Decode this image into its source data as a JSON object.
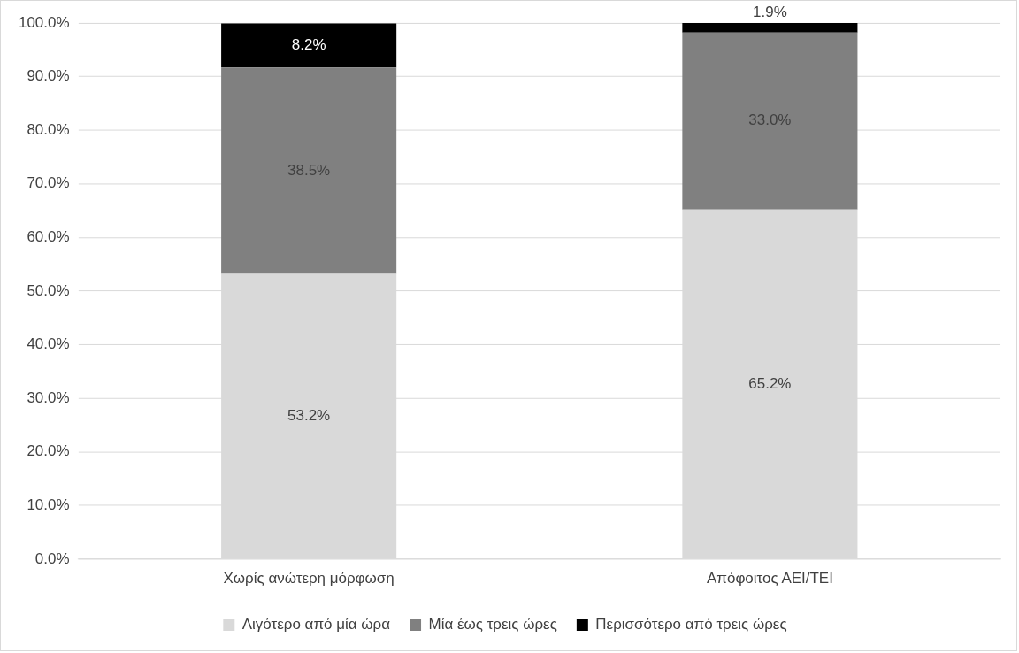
{
  "chart_data": {
    "type": "bar",
    "stacked": true,
    "categories": [
      "Χωρίς ανώτερη μόρφωση",
      "Απόφοιτος ΑΕΙ/ΤΕΙ"
    ],
    "series": [
      {
        "name": "Λιγότερο από μία ώρα",
        "color": "#d9d9d9",
        "values": [
          53.2,
          65.2
        ],
        "value_labels": [
          "53.2%",
          "65.2%"
        ]
      },
      {
        "name": "Μία έως τρεις ώρες",
        "color": "#808080",
        "values": [
          38.5,
          33.0
        ],
        "value_labels": [
          "38.5%",
          "33.0%"
        ]
      },
      {
        "name": "Περισσότερο από τρεις ώρες",
        "color": "#000000",
        "values": [
          8.2,
          1.9
        ],
        "value_labels": [
          "8.2%",
          "1.9%"
        ]
      }
    ],
    "ylim": [
      0,
      100
    ],
    "yticks": [
      {
        "value": 0,
        "label": "0.0%"
      },
      {
        "value": 10,
        "label": "10.0%"
      },
      {
        "value": 20,
        "label": "20.0%"
      },
      {
        "value": 30,
        "label": "30.0%"
      },
      {
        "value": 40,
        "label": "40.0%"
      },
      {
        "value": 50,
        "label": "50.0%"
      },
      {
        "value": 60,
        "label": "60.0%"
      },
      {
        "value": 70,
        "label": "70.0%"
      },
      {
        "value": 80,
        "label": "80.0%"
      },
      {
        "value": 90,
        "label": "90.0%"
      },
      {
        "value": 100,
        "label": "100.0%"
      }
    ],
    "grid": "y",
    "legend": "bottom"
  }
}
